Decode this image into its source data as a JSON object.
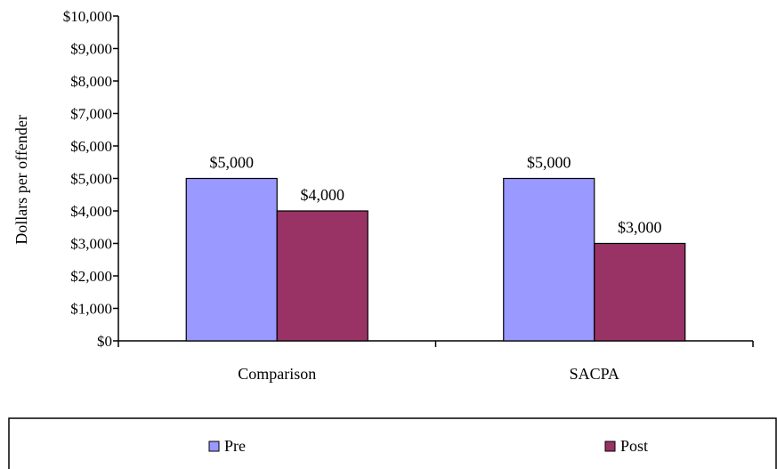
{
  "chart_data": {
    "type": "bar",
    "categories": [
      "Comparison",
      "SACPA"
    ],
    "series": [
      {
        "name": "Pre",
        "values": [
          5000,
          5000
        ],
        "labels": [
          "$5,000",
          "$5,000"
        ],
        "color": "#9999ff"
      },
      {
        "name": "Post",
        "values": [
          4000,
          3000
        ],
        "labels": [
          "$4,000",
          "$3,000"
        ],
        "color": "#993366"
      }
    ],
    "ylabel": "Dollars per offender",
    "ylim": [
      0,
      10000
    ],
    "yticks": [
      0,
      1000,
      2000,
      3000,
      4000,
      5000,
      6000,
      7000,
      8000,
      9000,
      10000
    ],
    "ytick_labels": [
      "$0",
      "$1,000",
      "$2,000",
      "$3,000",
      "$4,000",
      "$5,000",
      "$6,000",
      "$7,000",
      "$8,000",
      "$9,000",
      "$10,000"
    ],
    "grid": false,
    "legend": "bottom"
  }
}
